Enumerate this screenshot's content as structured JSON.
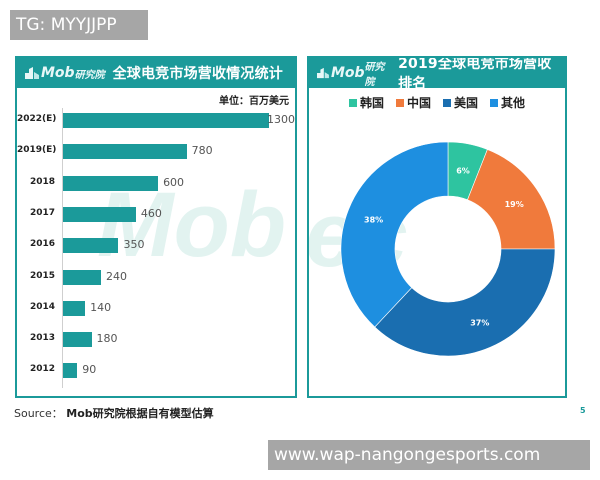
{
  "overlay": {
    "tg_badge": "TG: MYYJJPP",
    "url_badge": "www.wap-nangongesports.com"
  },
  "left_panel": {
    "logo": "Mob",
    "logo_cn": "研究院",
    "title": "全球电竞市场营收情况统计",
    "unit": "单位：百万美元",
    "watermark": "Mob"
  },
  "right_panel": {
    "logo": "Mob",
    "logo_cn": "研究院",
    "title": "2019全球电竞市场营收排名",
    "watermark": "bec",
    "legend": [
      {
        "label": "韩国",
        "color": "#2ec4a0"
      },
      {
        "label": "中国",
        "color": "#f07a3c"
      },
      {
        "label": "美国",
        "color": "#1a6eb0"
      },
      {
        "label": "其他",
        "color": "#1e8fe0"
      }
    ]
  },
  "footer": {
    "source_label": "Source：",
    "source_text": "Mob研究院根据自有模型估算",
    "page_number": "5"
  },
  "chart_data": [
    {
      "type": "bar",
      "orientation": "horizontal",
      "title": "全球电竞市场营收情况统计",
      "unit": "单位：百万美元",
      "categories": [
        "2022(E)",
        "2019(E)",
        "2018",
        "2017",
        "2016",
        "2015",
        "2014",
        "2013",
        "2012"
      ],
      "values": [
        1300,
        780,
        600,
        460,
        350,
        240,
        140,
        180,
        90
      ],
      "color": "#1b9a9a",
      "xlabel": "",
      "ylabel": "",
      "grid": false
    },
    {
      "type": "pie",
      "variant": "donut",
      "title": "2019全球电竞市场营收排名",
      "categories": [
        "韩国",
        "中国",
        "美国",
        "其他"
      ],
      "values": [
        6,
        19,
        37,
        38
      ],
      "labels": [
        "6%",
        "19%",
        "37%",
        "38%"
      ],
      "colors": [
        "#2ec4a0",
        "#f07a3c",
        "#1a6eb0",
        "#1e8fe0"
      ],
      "legend_position": "top"
    }
  ]
}
